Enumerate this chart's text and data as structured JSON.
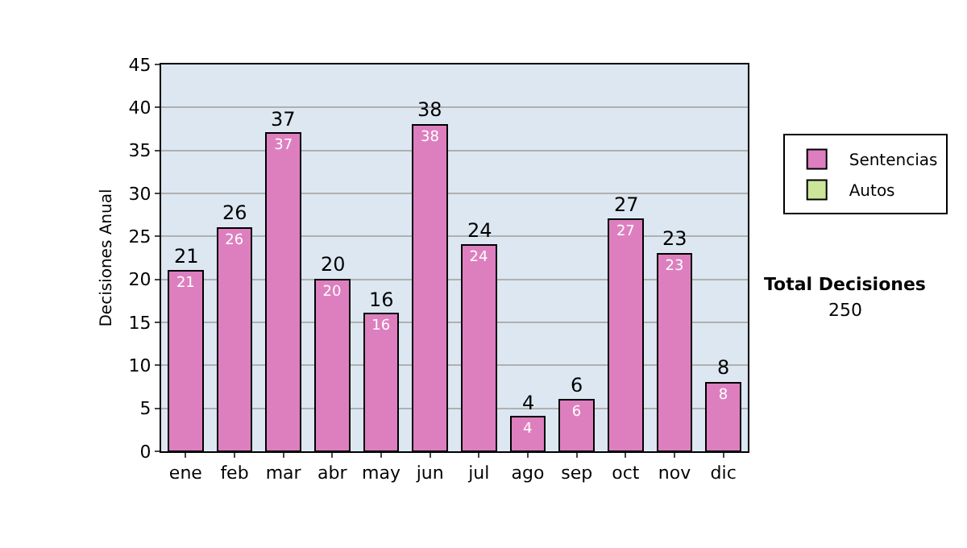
{
  "chart_data": {
    "type": "bar",
    "ylabel": "Decisiones Anual",
    "categories": [
      "ene",
      "feb",
      "mar",
      "abr",
      "may",
      "jun",
      "jul",
      "ago",
      "sep",
      "oct",
      "nov",
      "dic"
    ],
    "series": [
      {
        "name": "Sentencias",
        "color": "#dd7fbf",
        "values": [
          21,
          26,
          37,
          20,
          16,
          38,
          24,
          4,
          6,
          27,
          23,
          8
        ],
        "value_labels": [
          "21",
          "26",
          "37",
          "20",
          "16",
          "38",
          "24",
          "4",
          "6",
          "27",
          "23",
          "8"
        ]
      },
      {
        "name": "Autos",
        "color": "#cce699",
        "values": [
          null,
          null,
          null,
          null,
          null,
          null,
          null,
          null,
          null,
          null,
          null,
          null
        ]
      }
    ],
    "stacked": true,
    "totals": [
      "21",
      "26",
      "37",
      "20",
      "16",
      "38",
      "24",
      "4",
      "6",
      "27",
      "23",
      "8"
    ],
    "ylim": [
      0,
      45
    ],
    "yticks": [
      0,
      5,
      10,
      15,
      20,
      25,
      30,
      35,
      40,
      45
    ],
    "grid": "y",
    "legend": "right",
    "annotations": [
      "Total Decisiones",
      "250"
    ]
  }
}
